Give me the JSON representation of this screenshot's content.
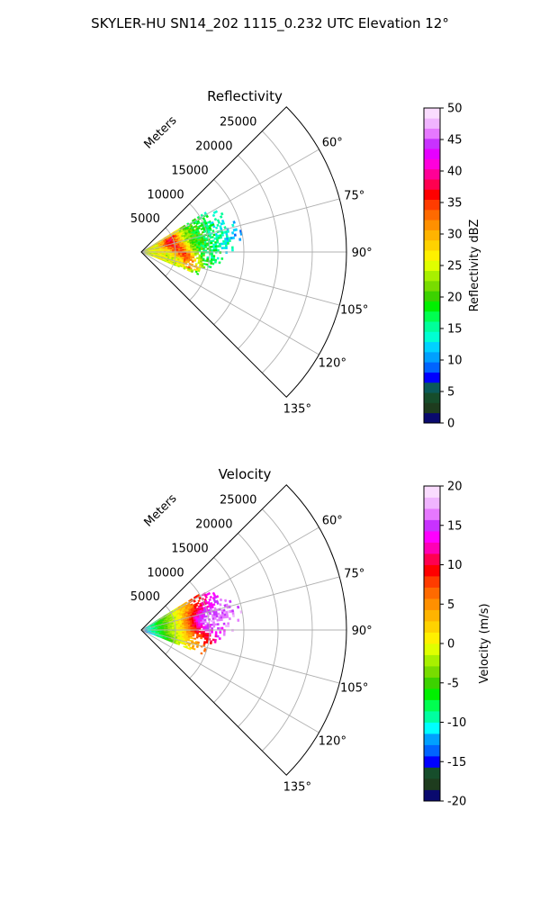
{
  "figure_title": "SKYLER-HU  SN14_202  1115_0.232 UTC Elevation 12°",
  "chart_data": [
    {
      "type": "heatmap",
      "projection": "polar-sector",
      "title": "Reflectivity",
      "radial_axis_label": "Meters",
      "radial_ticks": [
        5000,
        10000,
        15000,
        20000,
        25000
      ],
      "radial_tick_labels": [
        "5000",
        "10000",
        "15000",
        "20000",
        "25000"
      ],
      "r_max": 30000,
      "azimuth_range_deg": [
        45,
        135
      ],
      "azimuth_ticks": [
        60,
        75,
        90,
        105,
        120,
        135
      ],
      "azimuth_tick_labels": [
        "60°",
        "75°",
        "90°",
        "105°",
        "120°",
        "135°"
      ],
      "grid": true,
      "colorbar": {
        "label": "Reflectivity dBZ",
        "range": [
          0,
          50
        ],
        "ticks": [
          0,
          5,
          10,
          15,
          20,
          25,
          30,
          35,
          40,
          45,
          50
        ],
        "tick_labels": [
          "0",
          "5",
          "10",
          "15",
          "20",
          "25",
          "30",
          "35",
          "40",
          "45",
          "50"
        ],
        "colors": [
          "#0a0a6e",
          "#1e3c1e",
          "#164d2b",
          "#0a5a5a",
          "#0000ff",
          "#0064ff",
          "#00a0ff",
          "#00d2ff",
          "#00ffd2",
          "#00ff9a",
          "#00ff50",
          "#00f000",
          "#3cd200",
          "#78dc00",
          "#a8f000",
          "#e0ff00",
          "#fff000",
          "#ffd200",
          "#ffb400",
          "#ff9000",
          "#ff6a00",
          "#ff3c00",
          "#ff0000",
          "#ff0050",
          "#ff0096",
          "#ff00dc",
          "#e600ff",
          "#c832ff",
          "#e678ff",
          "#f0b4ff",
          "#fadcff"
        ]
      },
      "field_summary": "Echo fan within ~0–14 km range between 60° and 110° azimuth; values ~15–35 dBZ with a 35–40 dBZ arc near 5–8 km range."
    },
    {
      "type": "heatmap",
      "projection": "polar-sector",
      "title": "Velocity",
      "radial_axis_label": "Meters",
      "radial_ticks": [
        5000,
        10000,
        15000,
        20000,
        25000
      ],
      "radial_tick_labels": [
        "5000",
        "10000",
        "15000",
        "20000",
        "25000"
      ],
      "r_max": 30000,
      "azimuth_range_deg": [
        45,
        135
      ],
      "azimuth_ticks": [
        60,
        75,
        90,
        105,
        120,
        135
      ],
      "azimuth_tick_labels": [
        "60°",
        "75°",
        "90°",
        "105°",
        "120°",
        "135°"
      ],
      "grid": true,
      "colorbar": {
        "label": "Velocity (m/s)",
        "range": [
          -20,
          20
        ],
        "ticks": [
          -20,
          -15,
          -10,
          -5,
          0,
          5,
          10,
          15,
          20
        ],
        "tick_labels": [
          "-20",
          "-15",
          "-10",
          "-5",
          "0",
          "5",
          "10",
          "15",
          "20"
        ],
        "colors": [
          "#0a0a6e",
          "#1e3c1e",
          "#164d2b",
          "#0000ff",
          "#0064ff",
          "#00a0ff",
          "#00ffff",
          "#00ffa0",
          "#00ff50",
          "#00f000",
          "#3cd200",
          "#78dc00",
          "#a8f000",
          "#e0ff00",
          "#fff000",
          "#ffd200",
          "#ffb400",
          "#ff9000",
          "#ff6a00",
          "#ff3c00",
          "#ff0000",
          "#ff0050",
          "#ff00b4",
          "#ff00ff",
          "#c832ff",
          "#e678ff",
          "#f0b4ff",
          "#fadcff"
        ]
      },
      "field_summary": "Velocities ~ -10 m/s near the radar rising to 0–10 m/s outward; strongest ~15 m/s core near 8–11 km range around 75–85° azimuth."
    }
  ]
}
